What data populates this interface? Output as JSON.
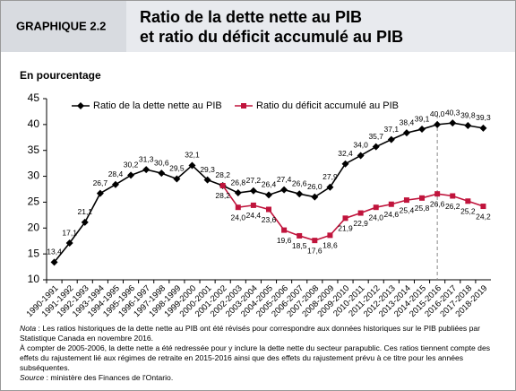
{
  "chart_data": {
    "type": "line",
    "figure_label": "GRAPHIQUE 2.2",
    "title": [
      "Ratio de la dette nette au PIB",
      "et ratio du déficit accumulé au PIB"
    ],
    "y_label": "En pourcentage",
    "categories": [
      "1990-1991",
      "1991-1992",
      "1992-1993",
      "1993-1994",
      "1994-1995",
      "1995-1996",
      "1996-1997",
      "1997-1998",
      "1998-1999",
      "1999-2000",
      "2000-2001",
      "2001-2002",
      "2002-2003",
      "2003-2004",
      "2004-2005",
      "2005-2006",
      "2006-2007",
      "2007-2008",
      "2008-2009",
      "2009-2010",
      "2010-2011",
      "2011-2012",
      "2012-2013",
      "2013-2014",
      "2014-2015",
      "2015-2016",
      "2016-2017",
      "2017-2018",
      "2018-2019"
    ],
    "series": [
      {
        "name": "Ratio de la dette nette au PIB",
        "color": "#000000",
        "marker": "diamond",
        "values": [
          13.4,
          17.1,
          21.1,
          26.7,
          28.4,
          30.2,
          31.3,
          30.6,
          29.5,
          32.1,
          29.3,
          28.2,
          26.8,
          27.2,
          26.4,
          27.4,
          26.6,
          26.0,
          27.9,
          32.4,
          34.0,
          35.7,
          37.1,
          38.4,
          39.1,
          40.0,
          40.3,
          39.8,
          39.3
        ],
        "value_labels": [
          "13,4",
          "17,1",
          "21,1",
          "26,7",
          "28,4",
          "30,2",
          "31,3",
          "30,6",
          "29,5",
          "32,1",
          "29,3",
          "28,2",
          "26,8",
          "27,2",
          "26,4",
          "27,4",
          "26,6",
          "26,0",
          "27,9",
          "32,4",
          "34,0",
          "35,7",
          "37,1",
          "38,4",
          "39,1",
          "40,0",
          "40,3",
          "39,8",
          "39,3"
        ]
      },
      {
        "name": "Ratio du déficit accumulé au PIB",
        "color": "#c0143c",
        "marker": "square",
        "values": [
          null,
          null,
          null,
          null,
          null,
          null,
          null,
          null,
          null,
          null,
          null,
          28.2,
          24.0,
          24.4,
          23.6,
          19.6,
          18.5,
          17.6,
          18.6,
          21.9,
          22.9,
          24.0,
          24.6,
          25.4,
          25.8,
          26.6,
          26.2,
          25.2,
          24.2
        ],
        "value_labels": [
          null,
          null,
          null,
          null,
          null,
          null,
          null,
          null,
          null,
          null,
          null,
          "28,2",
          "24,0",
          "24,4",
          "23,6",
          "19,6",
          "18,5",
          "17,6",
          "18,6",
          "21,9",
          "22,9",
          "24,0",
          "24,6",
          "25,4",
          "25,8",
          "26,6",
          "26,2",
          "25,2",
          "24,2"
        ]
      }
    ],
    "ylim": [
      10,
      45
    ],
    "yticks": [
      10,
      15,
      20,
      25,
      30,
      35,
      40,
      45
    ],
    "vline": "2015-2016",
    "legend": "top",
    "notes": [
      {
        "label": "Nota",
        "text": " : Les ratios historiques de la dette nette au PIB ont été révisés pour correspondre aux données historiques sur le PIB publiées par Statistique Canada en novembre 2016."
      },
      {
        "text": "À compter de 2005-2006, la dette nette a été redressée pour y inclure la dette nette du secteur parapublic. Ces ratios tiennent compte des effets du rajustement lié aux régimes de retraite en 2015-2016 ainsi que des effets du rajustement prévu à ce titre pour les années subséquentes."
      },
      {
        "label": "Source",
        "text": " : ministère des Finances de l'Ontario."
      }
    ]
  }
}
